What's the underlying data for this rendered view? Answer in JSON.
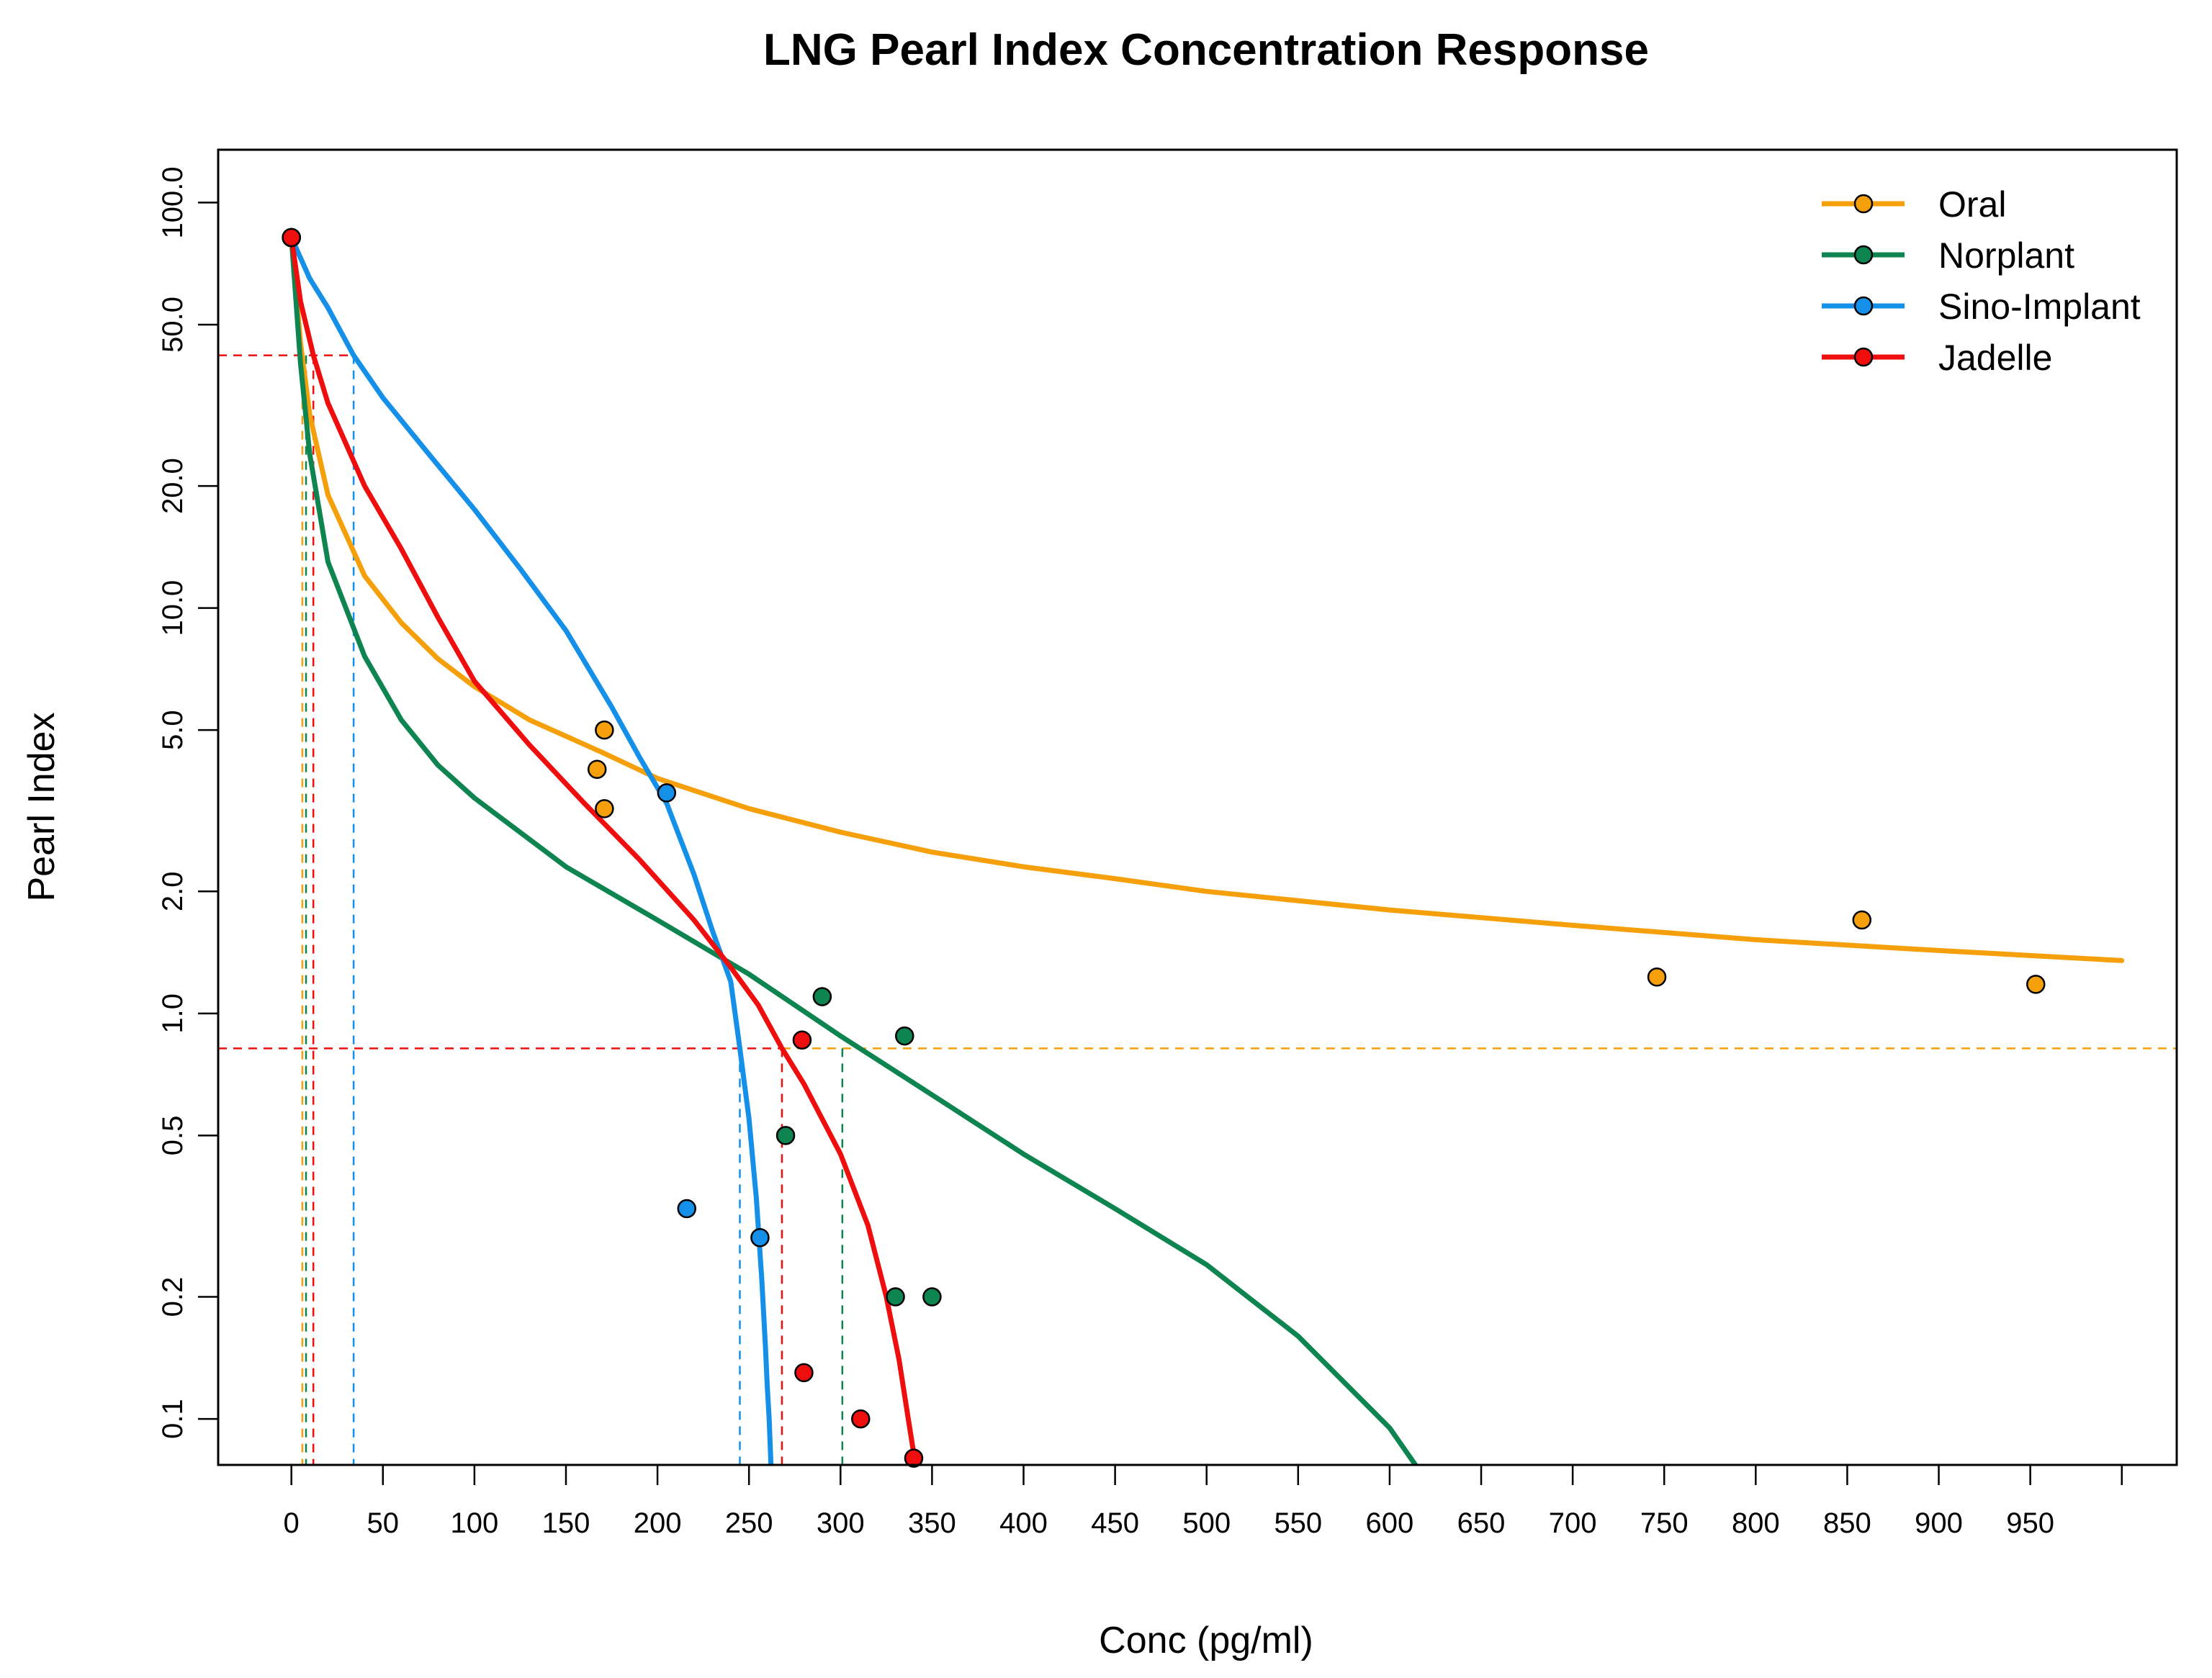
{
  "chart_data": {
    "type": "scatter",
    "title": "LNG Pearl Index Concentration Response",
    "xlabel": "Conc (pg/ml)",
    "ylabel": "Pearl Index",
    "xlim": [
      -40,
      1030
    ],
    "ylim": [
      0.077,
      135
    ],
    "y_scale": "log",
    "x_ticks": [
      0,
      50,
      100,
      150,
      200,
      250,
      300,
      350,
      400,
      450,
      500,
      550,
      600,
      650,
      700,
      750,
      800,
      850,
      900,
      950,
      1000
    ],
    "x_tick_labels": [
      "0",
      "50",
      "100",
      "150",
      "200",
      "250",
      "300",
      "350",
      "400",
      "450",
      "500",
      "550",
      "600",
      "650",
      "700",
      "750",
      "800",
      "850",
      "900",
      "950",
      ""
    ],
    "y_ticks": [
      0.1,
      0.2,
      0.5,
      1.0,
      2.0,
      5.0,
      10.0,
      20.0,
      50.0,
      100.0
    ],
    "y_tick_labels": [
      "0.1",
      "0.2",
      "0.5",
      "1.0",
      "2.0",
      "5.0",
      "10.0",
      "20.0",
      "50.0",
      "100.0"
    ],
    "legend_position": "top-right",
    "grid": false,
    "series": [
      {
        "name": "Oral",
        "color": "#F5A00A",
        "points": [
          [
            0,
            82
          ],
          [
            167,
            4.0
          ],
          [
            171,
            5.0
          ],
          [
            171,
            3.2
          ],
          [
            746,
            1.23
          ],
          [
            858,
            1.7
          ],
          [
            953,
            1.18
          ]
        ],
        "curve": [
          [
            0,
            82
          ],
          [
            5,
            45
          ],
          [
            10,
            30
          ],
          [
            20,
            19
          ],
          [
            40,
            12
          ],
          [
            60,
            9.2
          ],
          [
            80,
            7.5
          ],
          [
            100,
            6.4
          ],
          [
            130,
            5.3
          ],
          [
            170,
            4.4
          ],
          [
            200,
            3.8
          ],
          [
            250,
            3.2
          ],
          [
            300,
            2.8
          ],
          [
            350,
            2.5
          ],
          [
            400,
            2.3
          ],
          [
            450,
            2.15
          ],
          [
            500,
            2.0
          ],
          [
            600,
            1.8
          ],
          [
            700,
            1.65
          ],
          [
            800,
            1.52
          ],
          [
            900,
            1.43
          ],
          [
            1000,
            1.35
          ]
        ],
        "reference": {
          "concentration": 6,
          "index": 0.82
        }
      },
      {
        "name": "Norplant",
        "color": "#0E8450",
        "points": [
          [
            0,
            82
          ],
          [
            270,
            0.5
          ],
          [
            290,
            1.1
          ],
          [
            330,
            0.2
          ],
          [
            335,
            0.88
          ],
          [
            350,
            0.2
          ]
        ],
        "curve": [
          [
            0,
            82
          ],
          [
            5,
            40
          ],
          [
            10,
            24
          ],
          [
            20,
            13
          ],
          [
            40,
            7.6
          ],
          [
            60,
            5.3
          ],
          [
            80,
            4.1
          ],
          [
            100,
            3.4
          ],
          [
            150,
            2.3
          ],
          [
            200,
            1.7
          ],
          [
            250,
            1.25
          ],
          [
            300,
            0.88
          ],
          [
            350,
            0.63
          ],
          [
            400,
            0.45
          ],
          [
            450,
            0.33
          ],
          [
            500,
            0.24
          ],
          [
            550,
            0.16
          ],
          [
            600,
            0.095
          ],
          [
            615,
            0.076
          ]
        ],
        "reference": {
          "concentration": 301,
          "index": 0.82
        }
      },
      {
        "name": "Sino-Implant",
        "color": "#1490E8",
        "points": [
          [
            0,
            82
          ],
          [
            205,
            3.5
          ],
          [
            216,
            0.33
          ],
          [
            256,
            0.28
          ]
        ],
        "curve": [
          [
            0,
            82
          ],
          [
            10,
            65
          ],
          [
            20,
            55
          ],
          [
            34,
            42
          ],
          [
            50,
            33
          ],
          [
            75,
            24
          ],
          [
            100,
            17.5
          ],
          [
            125,
            12.5
          ],
          [
            150,
            8.8
          ],
          [
            175,
            5.7
          ],
          [
            190,
            4.3
          ],
          [
            205,
            3.3
          ],
          [
            220,
            2.2
          ],
          [
            230,
            1.6
          ],
          [
            240,
            1.2
          ],
          [
            245,
            0.82
          ],
          [
            250,
            0.55
          ],
          [
            254,
            0.35
          ],
          [
            257,
            0.22
          ],
          [
            259,
            0.15
          ],
          [
            260,
            0.12
          ],
          [
            261,
            0.1
          ],
          [
            262,
            0.077
          ]
        ],
        "reference": {
          "concentration": 245,
          "index": 0.82
        }
      },
      {
        "name": "Jadelle",
        "color": "#EE0E0E",
        "points": [
          [
            0,
            82
          ],
          [
            279,
            0.86
          ],
          [
            280,
            0.13
          ],
          [
            311,
            0.1
          ],
          [
            340,
            0.08
          ]
        ],
        "curve": [
          [
            0,
            82
          ],
          [
            5,
            57
          ],
          [
            12,
            42
          ],
          [
            20,
            32
          ],
          [
            40,
            20
          ],
          [
            60,
            14
          ],
          [
            80,
            9.5
          ],
          [
            100,
            6.6
          ],
          [
            130,
            4.6
          ],
          [
            160,
            3.3
          ],
          [
            190,
            2.4
          ],
          [
            220,
            1.7
          ],
          [
            240,
            1.3
          ],
          [
            255,
            1.05
          ],
          [
            268,
            0.82
          ],
          [
            280,
            0.67
          ],
          [
            300,
            0.45
          ],
          [
            315,
            0.3
          ],
          [
            325,
            0.2
          ],
          [
            332,
            0.14
          ],
          [
            337,
            0.1
          ],
          [
            341,
            0.077
          ]
        ],
        "reference": {
          "concentration": 268,
          "index": 0.82
        }
      }
    ],
    "reference_lines": {
      "upper_index": 42,
      "upper_concentration": 34,
      "upper_color": "#EE0E0E",
      "lower_index": 0.82,
      "lower_left_color": "#EE0E0E",
      "lower_right_color": "#F5A00A",
      "lower_color_change_at": 268,
      "drop_lines": [
        {
          "concentration": 6,
          "color": "#F5A00A"
        },
        {
          "concentration": 8,
          "color": "#0E8450"
        },
        {
          "concentration": 12,
          "color": "#EE0E0E"
        },
        {
          "concentration": 34,
          "color": "#1490E8"
        },
        {
          "concentration": 245,
          "color": "#1490E8"
        },
        {
          "concentration": 268,
          "color": "#EE0E0E"
        },
        {
          "concentration": 301,
          "color": "#0E8450"
        }
      ]
    }
  }
}
